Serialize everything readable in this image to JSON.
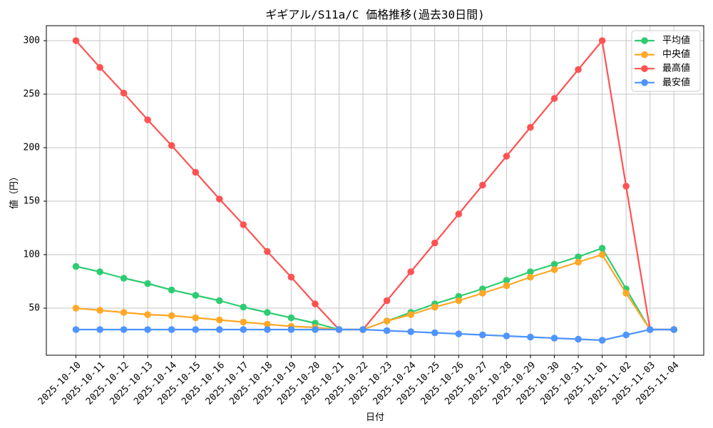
{
  "figure": {
    "background": "#ffffff",
    "grid_color": "#c6c6c6",
    "spine_color": "#000000",
    "legend_border_color": "#cccccc",
    "legend_background": "#ffffff"
  },
  "chart_data": {
    "type": "line",
    "title": "ギギアル/S11a/C 価格推移(過去30日間)",
    "xlabel": "日付",
    "ylabel": "値（円）",
    "grid": true,
    "legend_position": "upper right",
    "marker": "circle",
    "ylim": [
      6,
      314
    ],
    "yticks": [
      50,
      100,
      150,
      200,
      250,
      300
    ],
    "x": [
      "2025-10-10",
      "2025-10-11",
      "2025-10-12",
      "2025-10-13",
      "2025-10-14",
      "2025-10-15",
      "2025-10-16",
      "2025-10-17",
      "2025-10-18",
      "2025-10-19",
      "2025-10-20",
      "2025-10-21",
      "2025-10-22",
      "2025-10-23",
      "2025-10-24",
      "2025-10-25",
      "2025-10-26",
      "2025-10-27",
      "2025-10-28",
      "2025-10-29",
      "2025-10-30",
      "2025-10-31",
      "2025-11-01",
      "2025-11-02",
      "2025-11-03",
      "2025-11-04"
    ],
    "series": [
      {
        "id": "average",
        "name": "平均値",
        "color": "#2ecc71",
        "values": [
          89,
          84,
          78,
          73,
          67,
          62,
          57,
          51,
          46,
          41,
          36,
          30,
          30,
          38,
          46,
          54,
          61,
          68,
          76,
          84,
          91,
          98,
          106,
          68,
          30,
          30
        ]
      },
      {
        "id": "median",
        "name": "中央値",
        "color": "#ffa726",
        "values": [
          50,
          48,
          46,
          44,
          43,
          41,
          39,
          37,
          35,
          33,
          32,
          30,
          30,
          38,
          44,
          51,
          57,
          64,
          71,
          79,
          86,
          93,
          100,
          64,
          30,
          30
        ]
      },
      {
        "id": "max",
        "name": "最高値",
        "color": "#ff5252",
        "values": [
          300,
          275,
          251,
          226,
          202,
          177,
          152,
          128,
          103,
          79,
          54,
          30,
          30,
          57,
          84,
          111,
          138,
          165,
          192,
          219,
          246,
          273,
          300,
          164,
          30,
          30
        ]
      },
      {
        "id": "min",
        "name": "最安値",
        "color": "#4d94ff",
        "values": [
          30,
          30,
          30,
          30,
          30,
          30,
          30,
          30,
          30,
          30,
          30,
          30,
          30,
          29,
          28,
          27,
          26,
          25,
          24,
          23,
          22,
          21,
          20,
          25,
          30,
          30
        ]
      }
    ]
  }
}
